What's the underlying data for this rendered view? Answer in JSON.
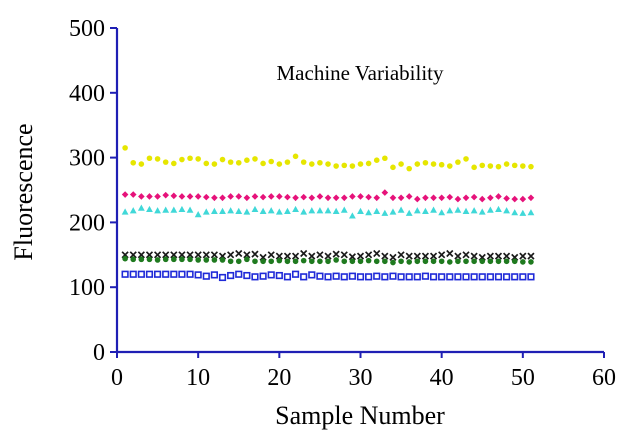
{
  "chart_data": {
    "type": "scatter",
    "title": "Machine Variability",
    "xlabel": "Sample Number",
    "ylabel": "Fluorescence",
    "xlim": [
      0,
      60
    ],
    "ylim": [
      0,
      500
    ],
    "x_ticks": [
      0,
      10,
      20,
      30,
      40,
      50,
      60
    ],
    "y_ticks": [
      0,
      100,
      200,
      300,
      400,
      500
    ],
    "x_tick_labels": [
      "0",
      "10",
      "20",
      "30",
      "40",
      "50",
      "60"
    ],
    "y_tick_labels": [
      "0",
      "100",
      "200",
      "300",
      "400",
      "500"
    ],
    "grid": false,
    "legend": "none",
    "series": [
      {
        "color": "#e6e600",
        "marker": "circle",
        "x": [
          1,
          2,
          3,
          4,
          5,
          6,
          7,
          8,
          9,
          10,
          11,
          12,
          13,
          14,
          15,
          16,
          17,
          18,
          19,
          20,
          21,
          22,
          23,
          24,
          25,
          26,
          27,
          28,
          29,
          30,
          31,
          32,
          33,
          34,
          35,
          36,
          37,
          38,
          39,
          40,
          41,
          42,
          43,
          44,
          45,
          46,
          47,
          48,
          49,
          50,
          51
        ],
        "y": [
          315,
          292,
          290,
          299,
          298,
          293,
          291,
          297,
          299,
          298,
          291,
          290,
          297,
          293,
          292,
          296,
          298,
          291,
          294,
          290,
          293,
          302,
          293,
          290,
          292,
          290,
          287,
          288,
          287,
          290,
          291,
          296,
          299,
          285,
          290,
          283,
          290,
          292,
          290,
          289,
          287,
          293,
          298,
          285,
          288,
          287,
          286,
          290,
          288,
          287,
          286
        ]
      },
      {
        "color": "#e6127a",
        "marker": "diamond",
        "x": [
          1,
          2,
          3,
          4,
          5,
          6,
          7,
          8,
          9,
          10,
          11,
          12,
          13,
          14,
          15,
          16,
          17,
          18,
          19,
          20,
          21,
          22,
          23,
          24,
          25,
          26,
          27,
          28,
          29,
          30,
          31,
          32,
          33,
          34,
          35,
          36,
          37,
          38,
          39,
          40,
          41,
          42,
          43,
          44,
          45,
          46,
          47,
          48,
          49,
          50,
          51
        ],
        "y": [
          243,
          243,
          240,
          240,
          240,
          242,
          241,
          240,
          240,
          240,
          239,
          238,
          238,
          240,
          240,
          238,
          240,
          239,
          240,
          240,
          239,
          238,
          239,
          238,
          240,
          238,
          238,
          238,
          240,
          240,
          239,
          238,
          246,
          238,
          238,
          240,
          236,
          238,
          238,
          238,
          239,
          236,
          238,
          239,
          236,
          238,
          240,
          237,
          236,
          236,
          238
        ]
      },
      {
        "color": "#40d8d8",
        "marker": "triangle",
        "x": [
          1,
          2,
          3,
          4,
          5,
          6,
          7,
          8,
          9,
          10,
          11,
          12,
          13,
          14,
          15,
          16,
          17,
          18,
          19,
          20,
          21,
          22,
          23,
          24,
          25,
          26,
          27,
          28,
          29,
          30,
          31,
          32,
          33,
          34,
          35,
          36,
          37,
          38,
          39,
          40,
          41,
          42,
          43,
          44,
          45,
          46,
          47,
          48,
          49,
          50,
          51
        ],
        "y": [
          216,
          218,
          222,
          220,
          218,
          219,
          219,
          220,
          219,
          212,
          216,
          217,
          217,
          218,
          217,
          216,
          220,
          217,
          218,
          216,
          217,
          220,
          216,
          218,
          218,
          218,
          217,
          219,
          210,
          217,
          215,
          217,
          214,
          216,
          219,
          214,
          218,
          217,
          219,
          215,
          218,
          219,
          217,
          218,
          216,
          219,
          220,
          218,
          215,
          214,
          215
        ]
      },
      {
        "color": "#1a1a1a",
        "marker": "x",
        "x": [
          1,
          2,
          3,
          4,
          5,
          6,
          7,
          8,
          9,
          10,
          11,
          12,
          13,
          14,
          15,
          16,
          17,
          18,
          19,
          20,
          21,
          22,
          23,
          24,
          25,
          26,
          27,
          28,
          29,
          30,
          31,
          32,
          33,
          34,
          35,
          36,
          37,
          38,
          39,
          40,
          41,
          42,
          43,
          44,
          45,
          46,
          47,
          48,
          49,
          50,
          51
        ],
        "y": [
          150,
          150,
          150,
          150,
          150,
          150,
          150,
          150,
          150,
          150,
          150,
          150,
          148,
          150,
          152,
          150,
          151,
          146,
          150,
          148,
          148,
          148,
          152,
          148,
          150,
          148,
          151,
          150,
          147,
          148,
          150,
          152,
          148,
          146,
          150,
          148,
          148,
          148,
          148,
          150,
          152,
          148,
          150,
          148,
          146,
          148,
          148,
          148,
          146,
          148,
          148
        ]
      },
      {
        "color": "#1f7a1f",
        "marker": "circle",
        "x": [
          1,
          2,
          3,
          4,
          5,
          6,
          7,
          8,
          9,
          10,
          11,
          12,
          13,
          14,
          15,
          16,
          17,
          18,
          19,
          20,
          21,
          22,
          23,
          24,
          25,
          26,
          27,
          28,
          29,
          30,
          31,
          32,
          33,
          34,
          35,
          36,
          37,
          38,
          39,
          40,
          41,
          42,
          43,
          44,
          45,
          46,
          47,
          48,
          49,
          50,
          51
        ],
        "y": [
          144,
          143,
          143,
          143,
          142,
          143,
          143,
          143,
          143,
          142,
          142,
          142,
          142,
          140,
          140,
          143,
          140,
          140,
          140,
          141,
          140,
          140,
          141,
          140,
          140,
          140,
          142,
          140,
          140,
          140,
          141,
          140,
          140,
          138,
          140,
          139,
          140,
          140,
          140,
          140,
          139,
          140,
          140,
          140,
          140,
          140,
          140,
          140,
          140,
          139,
          139
        ]
      },
      {
        "color": "#1f2ad8",
        "marker": "square",
        "x": [
          1,
          2,
          3,
          4,
          5,
          6,
          7,
          8,
          9,
          10,
          11,
          12,
          13,
          14,
          15,
          16,
          17,
          18,
          19,
          20,
          21,
          22,
          23,
          24,
          25,
          26,
          27,
          28,
          29,
          30,
          31,
          32,
          33,
          34,
          35,
          36,
          37,
          38,
          39,
          40,
          41,
          42,
          43,
          44,
          45,
          46,
          47,
          48,
          49,
          50,
          51
        ],
        "y": [
          120,
          120,
          120,
          120,
          120,
          120,
          120,
          120,
          120,
          119,
          117,
          119,
          115,
          118,
          120,
          118,
          116,
          117,
          119,
          118,
          116,
          120,
          116,
          119,
          117,
          116,
          117,
          116,
          117,
          116,
          116,
          117,
          116,
          117,
          116,
          116,
          116,
          117,
          116,
          116,
          116,
          116,
          116,
          116,
          116,
          116,
          116,
          116,
          116,
          116,
          116
        ]
      }
    ]
  }
}
